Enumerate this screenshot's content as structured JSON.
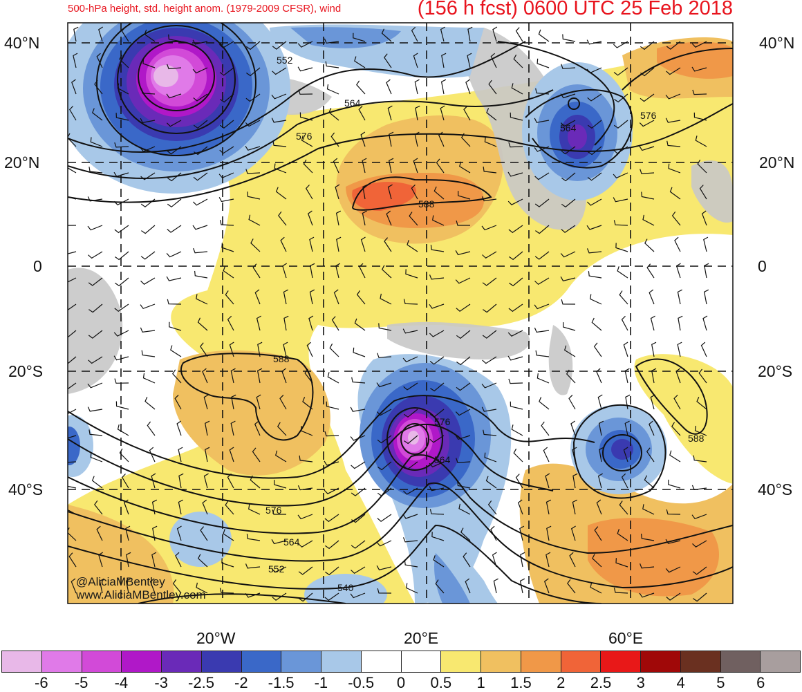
{
  "header": {
    "title_left": "500-hPa height, std. height anom. (1979-2009 CFSR), wind",
    "title_right": "(156 h fcst) 0600 UTC 25 Feb 2018"
  },
  "axes": {
    "lat_labels_left": [
      "40°N",
      "20°N",
      "0",
      "20°S",
      "40°S"
    ],
    "lat_labels_right": [
      "40°N",
      "20°N",
      "0",
      "20°S",
      "40°S"
    ],
    "lon_labels": [
      "20°W",
      "20°E",
      "60°E"
    ]
  },
  "contour_labels": [
    "552",
    "564",
    "576",
    "588",
    "564",
    "576",
    "588",
    "576",
    "564",
    "588",
    "576",
    "564",
    "552",
    "540"
  ],
  "credits": {
    "line1": "@AliciaMBentley",
    "line2": "www.AliciaMBentley.com"
  },
  "colorbar": {
    "labels": [
      "-6",
      "-5",
      "-4",
      "-3",
      "-2.5",
      "-2",
      "-1.5",
      "-1",
      "-0.5",
      "0",
      "0.5",
      "1",
      "1.5",
      "2",
      "2.5",
      "3",
      "4",
      "5",
      "6"
    ],
    "colors": [
      "#e8b8e8",
      "#e07ae8",
      "#d24ad8",
      "#b018c8",
      "#6a2ab8",
      "#3a3ab0",
      "#3a68c8",
      "#6a96d8",
      "#a8c8e8",
      "#ffffff",
      "#ffffff",
      "#f8e870",
      "#f0c060",
      "#f09848",
      "#f06438",
      "#e81818",
      "#a00808",
      "#6a3020",
      "#706060",
      "#a89e9e"
    ]
  },
  "palette": {
    "land_gray": "#c8c8c8",
    "anom_pos_1": "#f8e870",
    "anom_pos_2": "#f0c060",
    "anom_pos_3": "#f09848",
    "anom_pos_4": "#f06438",
    "anom_neg_1": "#a8c8e8",
    "anom_neg_2": "#6a96d8",
    "anom_neg_3": "#3a68c8",
    "anom_neg_4": "#3a3ab0",
    "anom_neg_5": "#b018c8",
    "anom_neg_6": "#d24ad8",
    "anom_neg_7": "#e8b8e8",
    "title_red": "#e8141e"
  }
}
